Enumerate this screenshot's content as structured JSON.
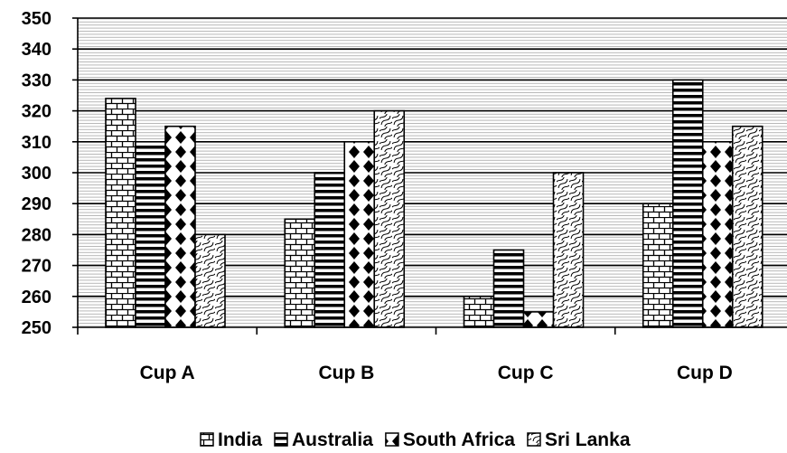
{
  "chart_data": {
    "type": "bar",
    "categories": [
      "Cup A",
      "Cup B",
      "Cup C",
      "Cup D"
    ],
    "series": [
      {
        "name": "India",
        "pattern": "brick",
        "values": [
          324,
          285,
          260,
          290
        ]
      },
      {
        "name": "Australia",
        "pattern": "horizontal",
        "values": [
          310,
          300,
          275,
          330
        ]
      },
      {
        "name": "South Africa",
        "pattern": "diamond",
        "values": [
          315,
          310,
          255,
          310
        ]
      },
      {
        "name": "Sri Lanka",
        "pattern": "wave",
        "values": [
          280,
          320,
          300,
          315
        ]
      }
    ],
    "title": "",
    "xlabel": "",
    "ylabel": "",
    "ylim": [
      250,
      350
    ],
    "yticks": [
      250,
      260,
      270,
      280,
      290,
      300,
      310,
      320,
      330,
      340,
      350
    ],
    "grid": true,
    "legend_position": "bottom"
  }
}
